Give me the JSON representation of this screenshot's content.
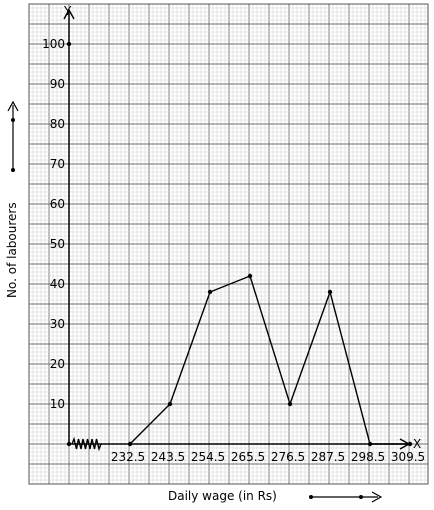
{
  "chart_data": {
    "type": "line",
    "x_axis_letter": "X",
    "y_axis_letter": "Y",
    "xlabel": "Daily wage (in Rs)",
    "ylabel": "No. of labourers",
    "x_tick_labels": [
      "232.5",
      "243.5",
      "254.5",
      "265.5",
      "276.5",
      "287.5",
      "298.5",
      "309.5"
    ],
    "y_tick_labels": [
      "10",
      "20",
      "30",
      "40",
      "50",
      "60",
      "70",
      "80",
      "90",
      "100"
    ],
    "ylim": [
      0,
      110
    ],
    "grid": true,
    "axis_break": true,
    "series": [
      {
        "x": [
          232.5,
          243.5,
          254.5,
          265.5,
          276.5,
          287.5,
          298.5,
          309.5
        ],
        "y": [
          0,
          10,
          38,
          42,
          10,
          38,
          0,
          0
        ]
      }
    ]
  }
}
